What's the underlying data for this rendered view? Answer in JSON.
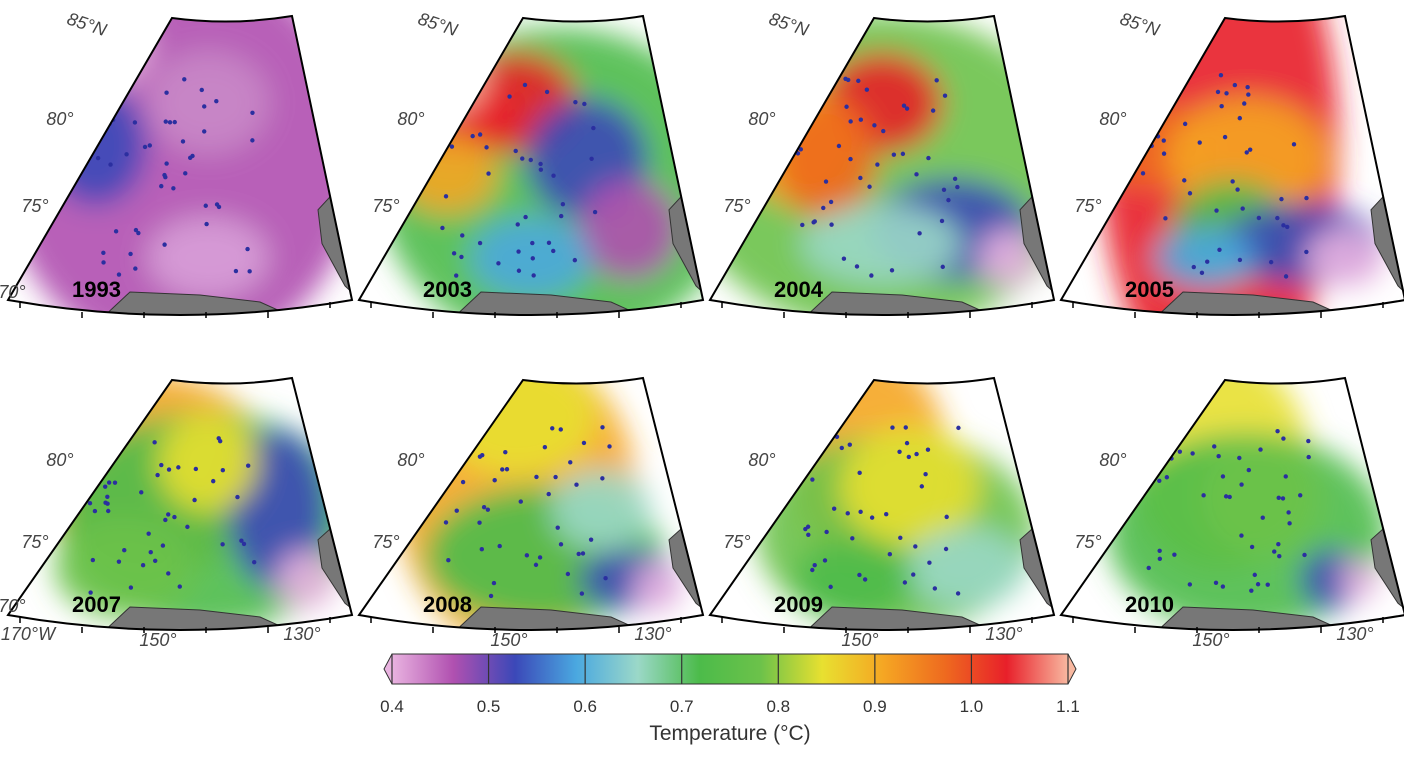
{
  "panels": [
    {
      "year": "1993",
      "lat_labels": [
        "85°N",
        "80°",
        "75°",
        "70°"
      ]
    },
    {
      "year": "2003",
      "lat_labels": [
        "85°N",
        "80°",
        "75°"
      ]
    },
    {
      "year": "2004",
      "lat_labels": [
        "85°N",
        "80°",
        "75°"
      ]
    },
    {
      "year": "2005",
      "lat_labels": [
        "85°N",
        "80°",
        "75°"
      ]
    },
    {
      "year": "2007",
      "lat_labels": [
        "80°",
        "75°",
        "70°"
      ],
      "lon_labels": [
        "170°W",
        "150°",
        "130°"
      ]
    },
    {
      "year": "2008",
      "lat_labels": [
        "80°",
        "75°"
      ],
      "lon_labels": [
        "150°",
        "130°"
      ]
    },
    {
      "year": "2009",
      "lat_labels": [
        "80°",
        "75°"
      ],
      "lon_labels": [
        "150°",
        "130°"
      ]
    },
    {
      "year": "2010",
      "lat_labels": [
        "80°",
        "75°"
      ],
      "lon_labels": [
        "150°",
        "130°"
      ]
    }
  ],
  "colorbar": {
    "title": "Temperature (°C)",
    "lim": [
      0.4,
      1.1
    ],
    "ticks": [
      0.4,
      0.5,
      0.6,
      0.7,
      0.8,
      0.9,
      {
        "value": 1,
        "label": "1.0"
      },
      1.1
    ],
    "colors": [
      "#e9b3e0",
      "#b050b0",
      "#3b48b8",
      "#4aa8e0",
      "#9bd8c8",
      "#4cbb4a",
      "#6cc24a",
      "#e8e030",
      "#f5a623",
      "#ee6a1f",
      "#e8202a",
      "#f8b8a0"
    ]
  }
}
